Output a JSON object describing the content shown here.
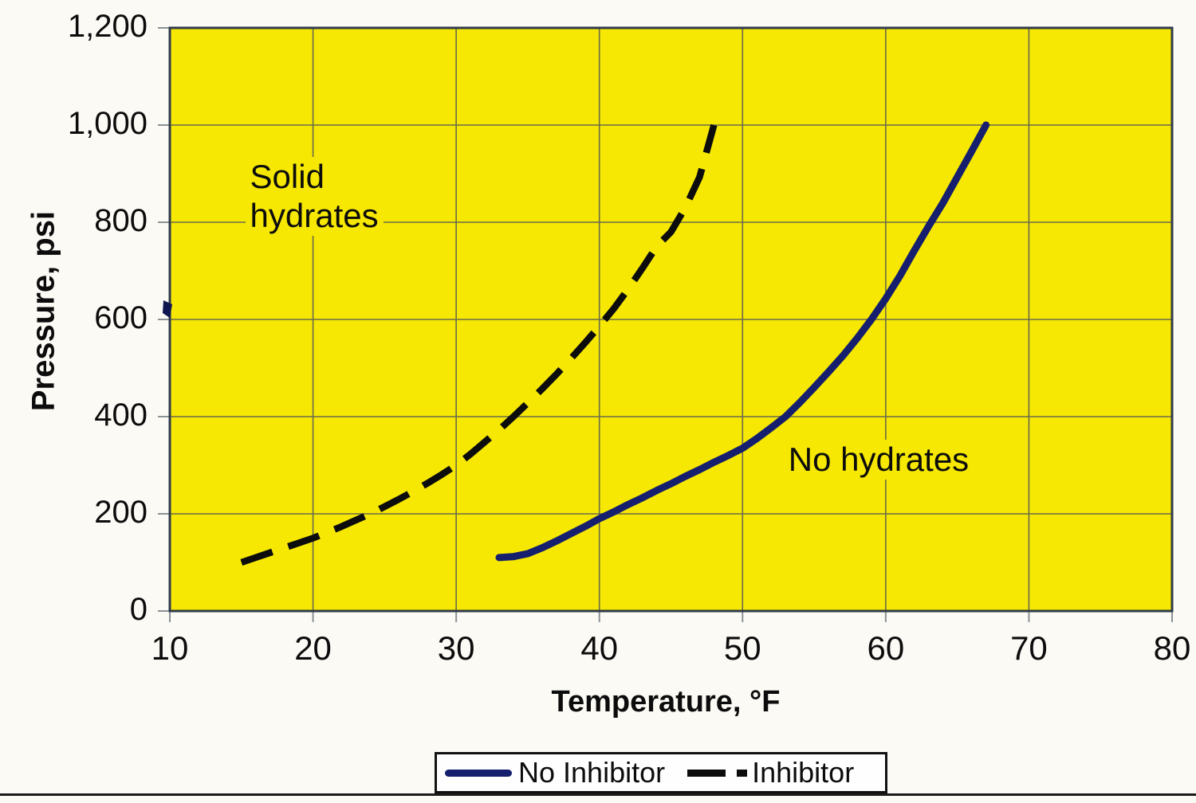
{
  "chart_data": {
    "type": "line",
    "title": "",
    "xlabel": "Temperature, °F",
    "ylabel": "Pressure, psi",
    "xlim": [
      10,
      80
    ],
    "ylim": [
      0,
      1200
    ],
    "x_ticks": [
      10,
      20,
      30,
      40,
      50,
      60,
      70,
      80
    ],
    "y_ticks": [
      0,
      200,
      400,
      600,
      800,
      1000,
      1200
    ],
    "y_tick_labels": [
      "0",
      "200",
      "400",
      "600",
      "800",
      "1,000",
      "1,200"
    ],
    "grid": true,
    "plot_background": "#f6e802",
    "legend_position": "bottom",
    "series": [
      {
        "name": "No Inhibitor",
        "style": "solid",
        "color": "#151f6d",
        "points": [
          [
            33,
            110
          ],
          [
            34,
            112
          ],
          [
            35,
            118
          ],
          [
            36,
            130
          ],
          [
            37,
            144
          ],
          [
            38,
            159
          ],
          [
            39,
            174
          ],
          [
            40,
            190
          ],
          [
            41,
            204
          ],
          [
            42,
            219
          ],
          [
            43,
            233
          ],
          [
            44,
            248
          ],
          [
            45,
            262
          ],
          [
            46,
            277
          ],
          [
            47,
            291
          ],
          [
            48,
            306
          ],
          [
            49,
            320
          ],
          [
            50,
            335
          ],
          [
            51,
            355
          ],
          [
            52,
            377
          ],
          [
            53,
            400
          ],
          [
            54,
            429
          ],
          [
            55,
            460
          ],
          [
            56,
            492
          ],
          [
            57,
            525
          ],
          [
            58,
            561
          ],
          [
            59,
            600
          ],
          [
            60,
            643
          ],
          [
            61,
            690
          ],
          [
            62,
            742
          ],
          [
            63,
            792
          ],
          [
            64,
            840
          ],
          [
            65,
            893
          ],
          [
            66,
            946
          ],
          [
            67,
            1000
          ]
        ]
      },
      {
        "name": "Inhibitor",
        "style": "dashed",
        "color": "#0c0c0c",
        "points": [
          [
            15,
            100
          ],
          [
            16,
            110
          ],
          [
            17,
            120
          ],
          [
            18,
            130
          ],
          [
            19,
            140
          ],
          [
            20,
            150
          ],
          [
            21,
            162
          ],
          [
            22,
            174
          ],
          [
            23,
            187
          ],
          [
            24,
            200
          ],
          [
            25,
            215
          ],
          [
            26,
            230
          ],
          [
            27,
            246
          ],
          [
            28,
            263
          ],
          [
            29,
            281
          ],
          [
            30,
            300
          ],
          [
            31,
            323
          ],
          [
            32,
            348
          ],
          [
            33,
            373
          ],
          [
            34,
            400
          ],
          [
            35,
            428
          ],
          [
            36,
            457
          ],
          [
            37,
            487
          ],
          [
            38,
            519
          ],
          [
            39,
            552
          ],
          [
            40,
            586
          ],
          [
            41,
            622
          ],
          [
            42,
            662
          ],
          [
            43,
            705
          ],
          [
            44,
            750
          ],
          [
            45,
            780
          ],
          [
            46,
            830
          ],
          [
            47,
            893
          ],
          [
            48,
            1000
          ]
        ]
      }
    ],
    "annotations": [
      {
        "id": "solid-hydrates",
        "text_lines": [
          "Solid",
          "hydrates"
        ],
        "x": 15.6,
        "y": 935
      },
      {
        "id": "no-hydrates",
        "text_lines": [
          "No hydrates"
        ],
        "x": 53.2,
        "y": 352
      }
    ]
  },
  "legend": {
    "items": [
      {
        "label": "No Inhibitor",
        "sample": "solid-navy"
      },
      {
        "label": "Inhibitor",
        "sample": "dashed-black"
      }
    ]
  }
}
